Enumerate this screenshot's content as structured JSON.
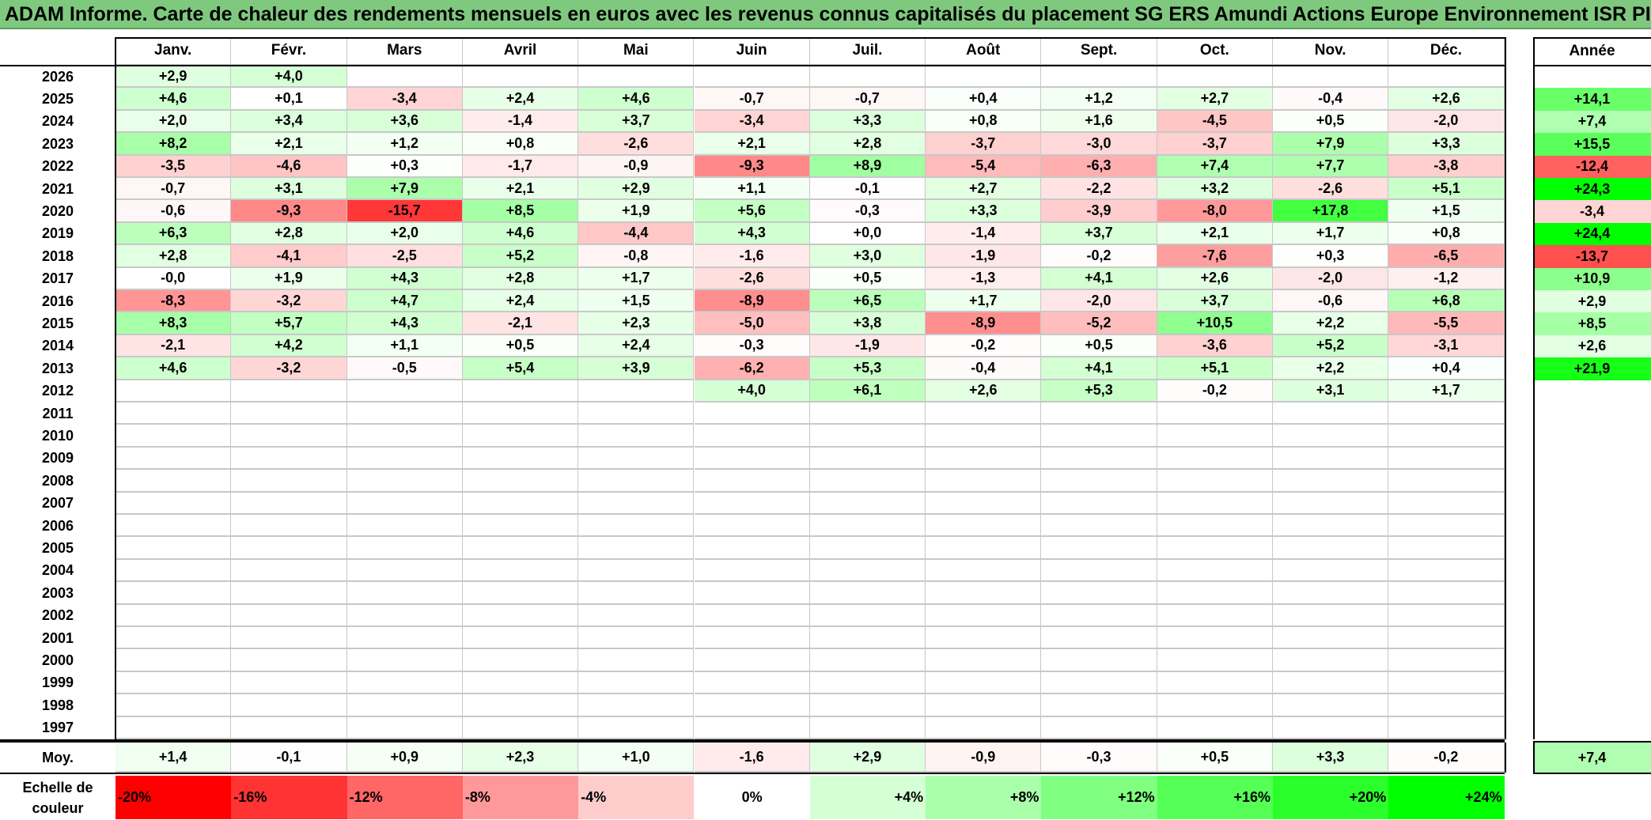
{
  "title": "ADAM Informe. Carte de chaleur des rendements mensuels en euros avec les revenus connus capitalisés du placement SG ERS Amundi Actions Europe Environnement ISR PI",
  "chart_data": {
    "type": "heatmap",
    "title": "ADAM Informe. Carte de chaleur des rendements mensuels en euros avec les revenus connus capitalisés du placement SG ERS Amundi Actions Europe Environnement ISR PI",
    "months": [
      "Janv.",
      "Févr.",
      "Mars",
      "Avril",
      "Mai",
      "Juin",
      "Juil.",
      "Août",
      "Sept.",
      "Oct.",
      "Nov.",
      "Déc."
    ],
    "annual_label": "Année",
    "rows": [
      {
        "year": "2026",
        "values": [
          "+2,9",
          "+4,0",
          null,
          null,
          null,
          null,
          null,
          null,
          null,
          null,
          null,
          null
        ],
        "annual": null
      },
      {
        "year": "2025",
        "values": [
          "+4,6",
          "+0,1",
          "-3,4",
          "+2,4",
          "+4,6",
          "-0,7",
          "-0,7",
          "+0,4",
          "+1,2",
          "+2,7",
          "-0,4",
          "+2,6"
        ],
        "annual": "+14,1"
      },
      {
        "year": "2024",
        "values": [
          "+2,0",
          "+3,4",
          "+3,6",
          "-1,4",
          "+3,7",
          "-3,4",
          "+3,3",
          "+0,8",
          "+1,6",
          "-4,5",
          "+0,5",
          "-2,0"
        ],
        "annual": "+7,4"
      },
      {
        "year": "2023",
        "values": [
          "+8,2",
          "+2,1",
          "+1,2",
          "+0,8",
          "-2,6",
          "+2,1",
          "+2,8",
          "-3,7",
          "-3,0",
          "-3,7",
          "+7,9",
          "+3,3"
        ],
        "annual": "+15,5"
      },
      {
        "year": "2022",
        "values": [
          "-3,5",
          "-4,6",
          "+0,3",
          "-1,7",
          "-0,9",
          "-9,3",
          "+8,9",
          "-5,4",
          "-6,3",
          "+7,4",
          "+7,7",
          "-3,8"
        ],
        "annual": "-12,4"
      },
      {
        "year": "2021",
        "values": [
          "-0,7",
          "+3,1",
          "+7,9",
          "+2,1",
          "+2,9",
          "+1,1",
          "-0,1",
          "+2,7",
          "-2,2",
          "+3,2",
          "-2,6",
          "+5,1"
        ],
        "annual": "+24,3"
      },
      {
        "year": "2020",
        "values": [
          "-0,6",
          "-9,3",
          "-15,7",
          "+8,5",
          "+1,9",
          "+5,6",
          "-0,3",
          "+3,3",
          "-3,9",
          "-8,0",
          "+17,8",
          "+1,5"
        ],
        "annual": "-3,4"
      },
      {
        "year": "2019",
        "values": [
          "+6,3",
          "+2,8",
          "+2,0",
          "+4,6",
          "-4,4",
          "+4,3",
          "+0,0",
          "-1,4",
          "+3,7",
          "+2,1",
          "+1,7",
          "+0,8"
        ],
        "annual": "+24,4"
      },
      {
        "year": "2018",
        "values": [
          "+2,8",
          "-4,1",
          "-2,5",
          "+5,2",
          "-0,8",
          "-1,6",
          "+3,0",
          "-1,9",
          "-0,2",
          "-7,6",
          "+0,3",
          "-6,5"
        ],
        "annual": "-13,7"
      },
      {
        "year": "2017",
        "values": [
          "-0,0",
          "+1,9",
          "+4,3",
          "+2,8",
          "+1,7",
          "-2,6",
          "+0,5",
          "-1,3",
          "+4,1",
          "+2,6",
          "-2,0",
          "-1,2"
        ],
        "annual": "+10,9"
      },
      {
        "year": "2016",
        "values": [
          "-8,3",
          "-3,2",
          "+4,7",
          "+2,4",
          "+1,5",
          "-8,9",
          "+6,5",
          "+1,7",
          "-2,0",
          "+3,7",
          "-0,6",
          "+6,8"
        ],
        "annual": "+2,9"
      },
      {
        "year": "2015",
        "values": [
          "+8,3",
          "+5,7",
          "+4,3",
          "-2,1",
          "+2,3",
          "-5,0",
          "+3,8",
          "-8,9",
          "-5,2",
          "+10,5",
          "+2,2",
          "-5,5"
        ],
        "annual": "+8,5"
      },
      {
        "year": "2014",
        "values": [
          "-2,1",
          "+4,2",
          "+1,1",
          "+0,5",
          "+2,4",
          "-0,3",
          "-1,9",
          "-0,2",
          "+0,5",
          "-3,6",
          "+5,2",
          "-3,1"
        ],
        "annual": "+2,6"
      },
      {
        "year": "2013",
        "values": [
          "+4,6",
          "-3,2",
          "-0,5",
          "+5,4",
          "+3,9",
          "-6,2",
          "+5,3",
          "-0,4",
          "+4,1",
          "+5,1",
          "+2,2",
          "+0,4"
        ],
        "annual": "+21,9"
      },
      {
        "year": "2012",
        "values": [
          null,
          null,
          null,
          null,
          null,
          "+4,0",
          "+6,1",
          "+2,6",
          "+5,3",
          "-0,2",
          "+3,1",
          "+1,7"
        ],
        "annual": null
      },
      {
        "year": "2011",
        "values": [
          null,
          null,
          null,
          null,
          null,
          null,
          null,
          null,
          null,
          null,
          null,
          null
        ],
        "annual": null
      },
      {
        "year": "2010",
        "values": [
          null,
          null,
          null,
          null,
          null,
          null,
          null,
          null,
          null,
          null,
          null,
          null
        ],
        "annual": null
      },
      {
        "year": "2009",
        "values": [
          null,
          null,
          null,
          null,
          null,
          null,
          null,
          null,
          null,
          null,
          null,
          null
        ],
        "annual": null
      },
      {
        "year": "2008",
        "values": [
          null,
          null,
          null,
          null,
          null,
          null,
          null,
          null,
          null,
          null,
          null,
          null
        ],
        "annual": null
      },
      {
        "year": "2007",
        "values": [
          null,
          null,
          null,
          null,
          null,
          null,
          null,
          null,
          null,
          null,
          null,
          null
        ],
        "annual": null
      },
      {
        "year": "2006",
        "values": [
          null,
          null,
          null,
          null,
          null,
          null,
          null,
          null,
          null,
          null,
          null,
          null
        ],
        "annual": null
      },
      {
        "year": "2005",
        "values": [
          null,
          null,
          null,
          null,
          null,
          null,
          null,
          null,
          null,
          null,
          null,
          null
        ],
        "annual": null
      },
      {
        "year": "2004",
        "values": [
          null,
          null,
          null,
          null,
          null,
          null,
          null,
          null,
          null,
          null,
          null,
          null
        ],
        "annual": null
      },
      {
        "year": "2003",
        "values": [
          null,
          null,
          null,
          null,
          null,
          null,
          null,
          null,
          null,
          null,
          null,
          null
        ],
        "annual": null
      },
      {
        "year": "2002",
        "values": [
          null,
          null,
          null,
          null,
          null,
          null,
          null,
          null,
          null,
          null,
          null,
          null
        ],
        "annual": null
      },
      {
        "year": "2001",
        "values": [
          null,
          null,
          null,
          null,
          null,
          null,
          null,
          null,
          null,
          null,
          null,
          null
        ],
        "annual": null
      },
      {
        "year": "2000",
        "values": [
          null,
          null,
          null,
          null,
          null,
          null,
          null,
          null,
          null,
          null,
          null,
          null
        ],
        "annual": null
      },
      {
        "year": "1999",
        "values": [
          null,
          null,
          null,
          null,
          null,
          null,
          null,
          null,
          null,
          null,
          null,
          null
        ],
        "annual": null
      },
      {
        "year": "1998",
        "values": [
          null,
          null,
          null,
          null,
          null,
          null,
          null,
          null,
          null,
          null,
          null,
          null
        ],
        "annual": null
      },
      {
        "year": "1997",
        "values": [
          null,
          null,
          null,
          null,
          null,
          null,
          null,
          null,
          null,
          null,
          null,
          null
        ],
        "annual": null
      }
    ],
    "average": {
      "label": "Moy.",
      "values": [
        "+1,4",
        "-0,1",
        "+0,9",
        "+2,3",
        "+1,0",
        "-1,6",
        "+2,9",
        "-0,9",
        "-0,3",
        "+0,5",
        "+3,3",
        "-0,2"
      ],
      "annual": "+7,4"
    },
    "color_scale": {
      "label": "Echelle de couleur",
      "steps": [
        {
          "label": "-20%",
          "value": -20,
          "color": "#ff0000"
        },
        {
          "label": "-16%",
          "value": -16,
          "color": "#ff3333"
        },
        {
          "label": "-12%",
          "value": -12,
          "color": "#ff6666"
        },
        {
          "label": "-8%",
          "value": -8,
          "color": "#ff9999"
        },
        {
          "label": "-4%",
          "value": -4,
          "color": "#ffcccc"
        },
        {
          "label": "0%",
          "value": 0,
          "color": "#ffffff"
        },
        {
          "label": "+4%",
          "value": 4,
          "color": "#d5ffd5"
        },
        {
          "label": "+8%",
          "value": 8,
          "color": "#aaffaa"
        },
        {
          "label": "+12%",
          "value": 12,
          "color": "#80ff80"
        },
        {
          "label": "+16%",
          "value": 16,
          "color": "#55ff55"
        },
        {
          "label": "+20%",
          "value": 20,
          "color": "#2bff2b"
        },
        {
          "label": "+24%",
          "value": 24,
          "color": "#00ff00"
        }
      ]
    }
  }
}
